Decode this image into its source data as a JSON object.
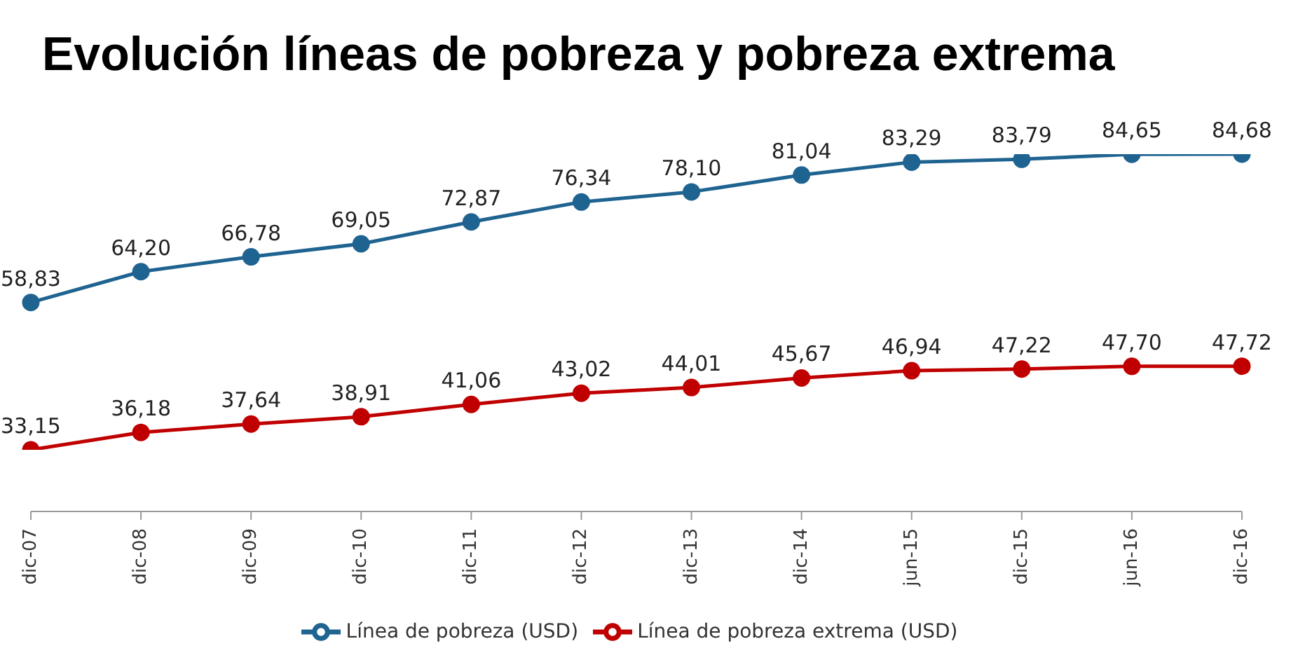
{
  "chart_data": {
    "type": "line",
    "title": "Evolución líneas de pobreza y pobreza extrema",
    "categories": [
      "dic-07",
      "dic-08",
      "dic-09",
      "dic-10",
      "dic-11",
      "dic-12",
      "dic-13",
      "dic-14",
      "jun-15",
      "dic-15",
      "jun-16",
      "dic-16"
    ],
    "series": [
      {
        "name": "Línea de pobreza (USD)",
        "color": "#1f6391",
        "values": [
          58.83,
          64.2,
          66.78,
          69.05,
          72.87,
          76.34,
          78.1,
          81.04,
          83.29,
          83.79,
          84.65,
          84.68
        ],
        "value_labels": [
          "58,83",
          "64,20",
          "66,78",
          "69,05",
          "72,87",
          "76,34",
          "78,10",
          "81,04",
          "83,29",
          "83,79",
          "84,65",
          "84,68"
        ]
      },
      {
        "name": "Línea de pobreza extrema (USD)",
        "color": "#c00000",
        "values": [
          33.15,
          36.18,
          37.64,
          38.91,
          41.06,
          43.02,
          44.01,
          45.67,
          46.94,
          47.22,
          47.7,
          47.72
        ],
        "value_labels": [
          "33,15",
          "36,18",
          "37,64",
          "38,91",
          "41,06",
          "43,02",
          "44,01",
          "45,67",
          "46,94",
          "47,22",
          "47,70",
          "47,72"
        ]
      }
    ],
    "marker": "circle",
    "line_style": "solid",
    "grid": false,
    "legend": "bottom"
  }
}
